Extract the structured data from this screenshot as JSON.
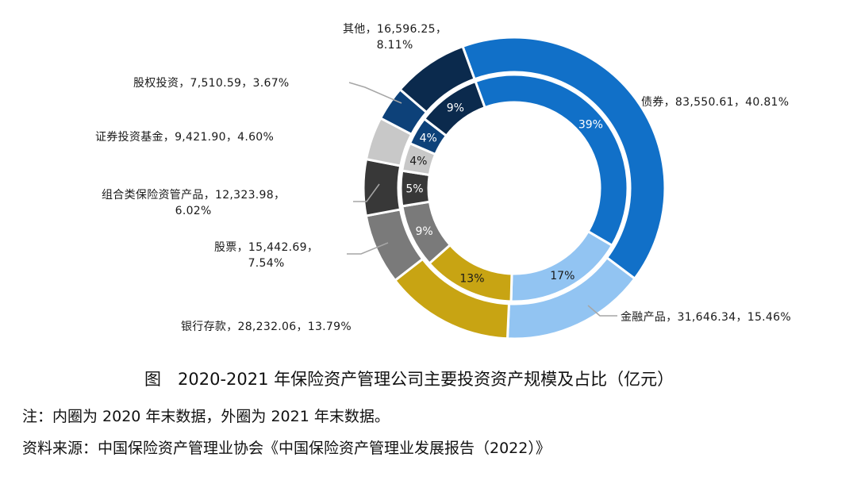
{
  "chart_data": {
    "type": "pie",
    "subtype": "doughnut-two-ring",
    "title": "图　2020-2021 年保险资产管理公司主要投资资产规模及占比（亿元）",
    "note": "注：内圈为 2020 年末数据，外圈为 2021 年末数据。",
    "source": "资料来源：中国保险资产管理业协会《中国保险资产管理业发展报告（2022）》",
    "categories": [
      "债券",
      "金融产品",
      "银行存款",
      "股票",
      "组合类保险资管产品",
      "证券投资基金",
      "股权投资",
      "其他"
    ],
    "colors": [
      "#1170c8",
      "#92c4f2",
      "#c8a413",
      "#7a7a7a",
      "#383838",
      "#c8c8c8",
      "#0d4179",
      "#0b2a4d"
    ],
    "series": [
      {
        "name": "2021",
        "ring": "outer",
        "values": [
          83550.61,
          31646.34,
          28232.06,
          15442.69,
          12323.98,
          9421.9,
          7510.59,
          16596.25
        ],
        "percents": [
          40.81,
          15.46,
          13.79,
          7.54,
          6.02,
          4.6,
          3.67,
          8.11
        ],
        "labels": [
          [
            "债券，83,550.61，40.81%"
          ],
          [
            "金融产品，31,646.34，15.46%"
          ],
          [
            "银行存款，28,232.06，13.79%"
          ],
          [
            "股票，15,442.69，",
            "7.54%"
          ],
          [
            "组合类保险资管产品，12,323.98，",
            "6.02%"
          ],
          [
            "证券投资基金，9,421.90，4.60%"
          ],
          [
            "股权投资，7,510.59，3.67%"
          ],
          [
            "其他，16,596.25，",
            "8.11%"
          ]
        ]
      },
      {
        "name": "2020",
        "ring": "inner",
        "values": [
          39,
          17,
          13,
          9,
          5,
          4,
          4,
          9
        ],
        "labels": [
          "39%",
          "17%",
          "13%",
          "9%",
          "5%",
          "4%",
          "4%",
          "9%"
        ],
        "label_colors": [
          "#ffffff",
          "#1a1a1a",
          "#1a1a1a",
          "#ffffff",
          "#ffffff",
          "#1a1a1a",
          "#ffffff",
          "#ffffff"
        ]
      }
    ],
    "start_angle_deg": -20,
    "legend": "none"
  }
}
